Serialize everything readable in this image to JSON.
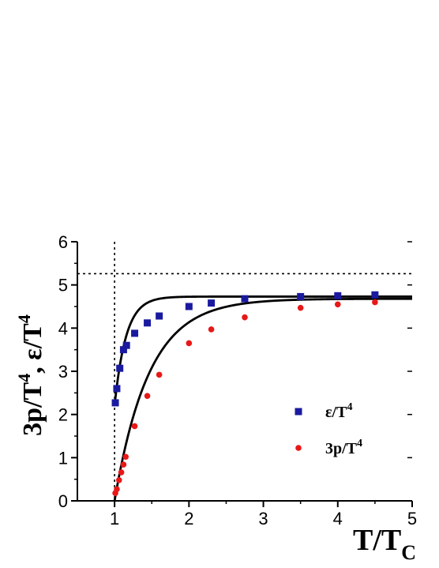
{
  "chart_data": {
    "type": "scatter",
    "xlim": [
      0.5,
      5
    ],
    "ylim": [
      0,
      6
    ],
    "x_ticks": [
      1,
      2,
      3,
      4,
      5
    ],
    "y_ticks": [
      0,
      1,
      2,
      3,
      4,
      5,
      6
    ],
    "x_tick_labels": [
      "1",
      "2",
      "3",
      "4",
      "5"
    ],
    "y_tick_labels": [
      "0",
      "1",
      "2",
      "3",
      "4",
      "5",
      "6"
    ],
    "xlabel": {
      "main": "T/T",
      "sub": "C"
    },
    "ylabel": {
      "part1": "3p/T",
      "sup1": "4",
      "sep": ",  ",
      "part2": "ε/T",
      "sup2": "4"
    },
    "reference_lines": {
      "horizontal_y": 5.26,
      "vertical_x": 1.0,
      "style": "dotted"
    },
    "legend_position": "lower-right",
    "series": [
      {
        "name": "ε/T",
        "name_sup": "4",
        "marker": "square",
        "color": "#1a1aa0",
        "x": [
          1.01,
          1.03,
          1.07,
          1.12,
          1.16,
          1.27,
          1.44,
          1.6,
          2.0,
          2.3,
          2.75,
          3.5,
          4.0,
          4.5
        ],
        "y": [
          2.27,
          2.6,
          3.07,
          3.5,
          3.6,
          3.88,
          4.12,
          4.28,
          4.5,
          4.58,
          4.68,
          4.73,
          4.75,
          4.77
        ]
      },
      {
        "name": "3p/T",
        "name_sup": "4",
        "marker": "circle",
        "color": "#e81818",
        "x": [
          1.01,
          1.03,
          1.06,
          1.09,
          1.12,
          1.15,
          1.27,
          1.44,
          1.6,
          2.0,
          2.3,
          2.75,
          3.5,
          4.0,
          4.5
        ],
        "y": [
          0.18,
          0.27,
          0.48,
          0.66,
          0.84,
          1.02,
          1.73,
          2.43,
          2.92,
          3.65,
          3.97,
          4.25,
          4.47,
          4.55,
          4.6
        ]
      }
    ],
    "fit_curves": [
      {
        "color": "#000000",
        "asymptote": 4.73,
        "start_y": 2.2,
        "decay": 6.5,
        "x_start": 1.0
      },
      {
        "color": "#000000",
        "asymptote": 4.68,
        "start_y": 0.0,
        "decay": 2.15,
        "x_start": 1.0
      }
    ]
  }
}
